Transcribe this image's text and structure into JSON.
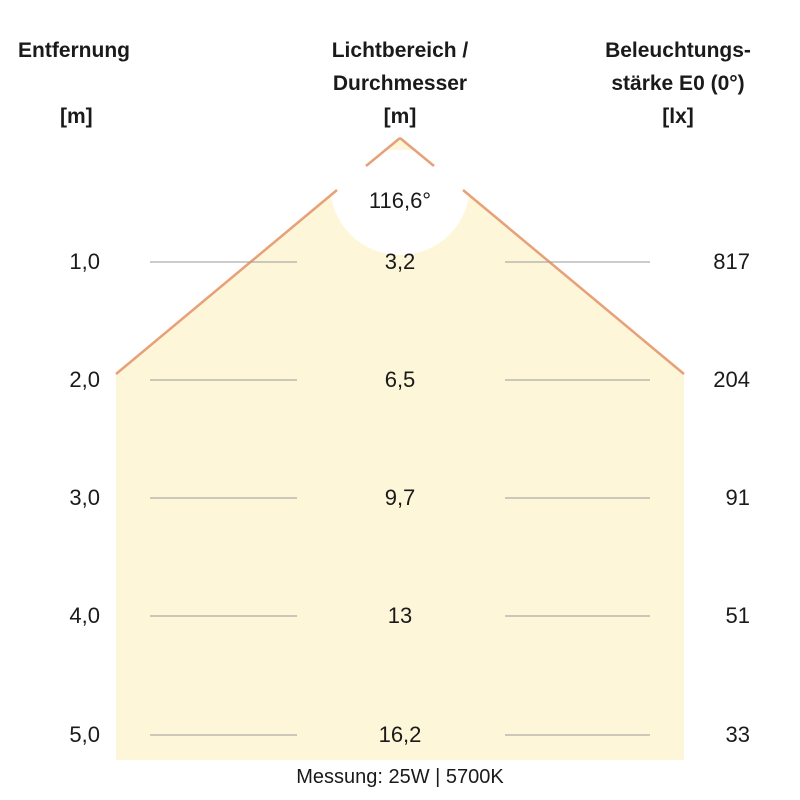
{
  "headers": {
    "distance": {
      "line1": "Entfernung",
      "unit": "[m]"
    },
    "diameter": {
      "line1": "Lichtbereich /",
      "line2": "Durchmesser",
      "unit": "[m]"
    },
    "illuminance": {
      "line1": "Beleuchtungs-",
      "line2": "stärke E0 (0°)",
      "unit": "[lx]"
    }
  },
  "beam_angle": "116,6°",
  "rows": [
    {
      "distance": "1,0",
      "diameter": "3,2",
      "lux": "817"
    },
    {
      "distance": "2,0",
      "diameter": "6,5",
      "lux": "204"
    },
    {
      "distance": "3,0",
      "diameter": "9,7",
      "lux": "91"
    },
    {
      "distance": "4,0",
      "diameter": "13",
      "lux": "51"
    },
    {
      "distance": "5,0",
      "diameter": "16,2",
      "lux": "33"
    }
  ],
  "footnote": "Messung: 25W | 5700K",
  "colors": {
    "beam_fill": "#fdf6d8",
    "beam_edge": "#e8a078",
    "grid_line": "#9a9a9a",
    "text": "#1a1a1a"
  }
}
